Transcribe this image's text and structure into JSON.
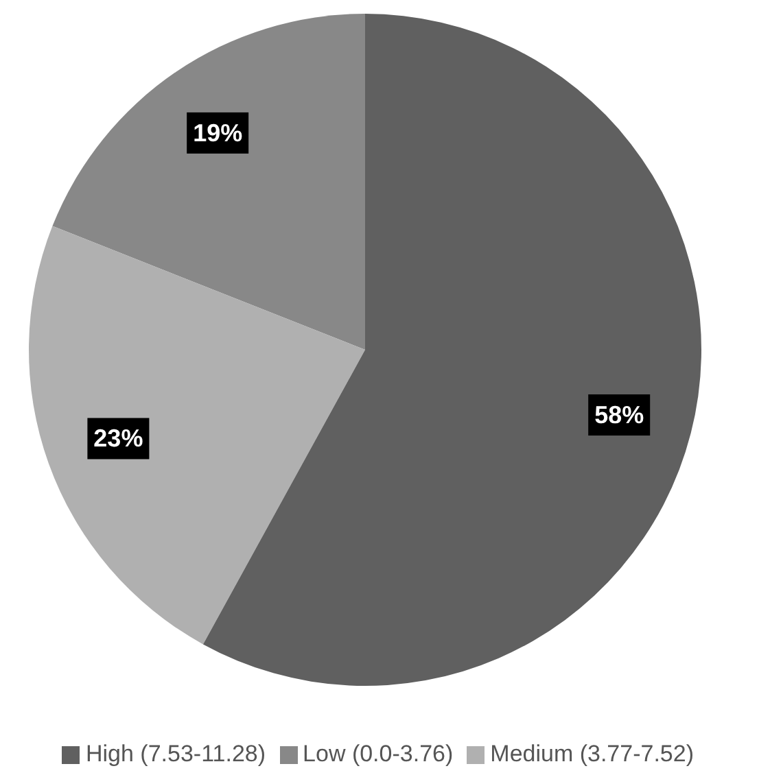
{
  "chart_data": {
    "type": "pie",
    "categories": [
      "Low (0.0-3.76)",
      "Medium (3.77-7.52)",
      "High (7.53-11.28)"
    ],
    "values": [
      19,
      23,
      58
    ],
    "colors": [
      "#888888",
      "#b0b0b0",
      "#606060"
    ],
    "value_labels": [
      "19%",
      "23%",
      "58%"
    ],
    "legend": "bottom"
  }
}
